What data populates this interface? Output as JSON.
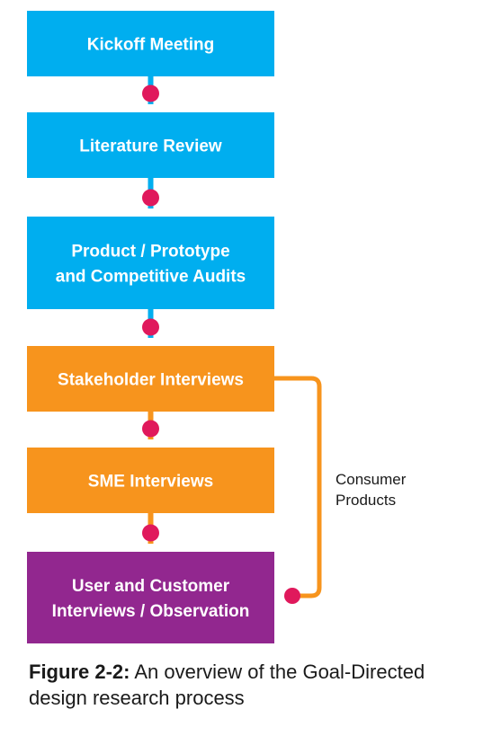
{
  "diagram": {
    "colors": {
      "blue": "#00aeef",
      "orange": "#f7941d",
      "purple": "#92278f",
      "connector_dot": "#e0195c"
    },
    "steps": [
      {
        "lines": [
          "Kickoff Meeting"
        ],
        "color": "blue"
      },
      {
        "lines": [
          "Literature Review"
        ],
        "color": "blue"
      },
      {
        "lines": [
          "Product / Prototype",
          "and Competitive Audits"
        ],
        "color": "blue"
      },
      {
        "lines": [
          "Stakeholder Interviews"
        ],
        "color": "orange"
      },
      {
        "lines": [
          "SME Interviews"
        ],
        "color": "orange"
      },
      {
        "lines": [
          "User and Customer",
          "Interviews / Observation"
        ],
        "color": "purple"
      }
    ],
    "side_label": [
      "Consumer",
      "Products"
    ]
  },
  "caption": {
    "figure_number": "Figure 2-2:",
    "text": " An overview of the Goal-Directed design research process"
  }
}
